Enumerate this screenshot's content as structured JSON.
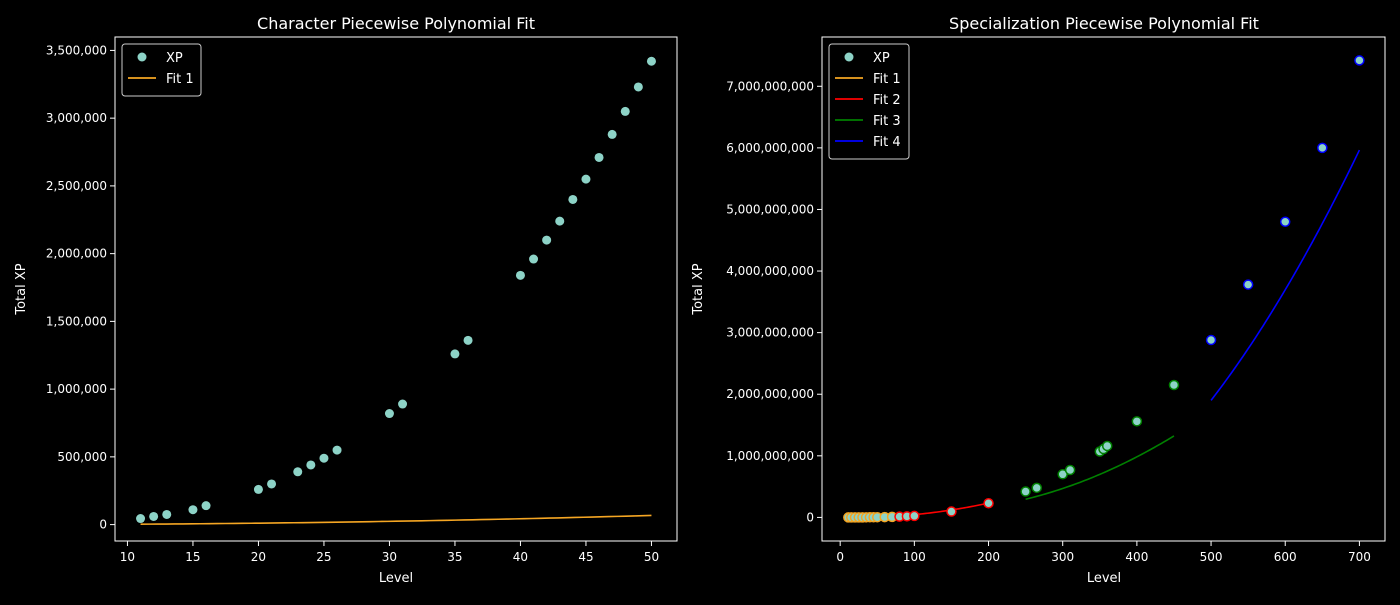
{
  "chart_data": [
    {
      "type": "line",
      "title": "Character Piecewise Polynomial Fit",
      "xlabel": "Level",
      "ylabel": "Total XP",
      "xlim": [
        9.05,
        51.95
      ],
      "ylim": [
        -121000,
        3599000
      ],
      "xticks": [
        10,
        15,
        20,
        25,
        30,
        35,
        40,
        45,
        50
      ],
      "yticks": [
        0,
        500000,
        1000000,
        1500000,
        2000000,
        2500000,
        3000000,
        3500000
      ],
      "legend": "top-left",
      "scatter": {
        "name": "XP",
        "color": "#8dd3c7",
        "x": [
          11,
          12,
          13,
          15,
          16,
          20,
          21,
          23,
          24,
          25,
          26,
          30,
          31,
          35,
          36,
          40,
          41,
          42,
          43,
          44,
          45,
          46,
          47,
          48,
          49,
          50
        ],
        "y": [
          45000,
          60000,
          75000,
          110000,
          140000,
          260000,
          300000,
          390000,
          440000,
          490000,
          550000,
          820000,
          890000,
          1260000,
          1360000,
          1840000,
          1960000,
          2100000,
          2240000,
          2400000,
          2550000,
          2710000,
          2880000,
          3050000,
          3230000,
          3420000
        ]
      },
      "fits": [
        {
          "name": "Fit 1",
          "color": "#f5a623",
          "coef": [
            27.4,
            -17.9,
            0
          ],
          "from": 11,
          "to": 50
        }
      ]
    },
    {
      "type": "line",
      "title": "Specialization Piecewise Polynomial Fit",
      "xlabel": "Level",
      "ylabel": "Total XP",
      "xlim": [
        -24.5,
        734.5
      ],
      "ylim": [
        -383000000,
        7800000000
      ],
      "xticks": [
        0,
        100,
        200,
        300,
        400,
        500,
        600,
        700
      ],
      "yticks": [
        0,
        1000000000,
        2000000000,
        3000000000,
        4000000000,
        5000000000,
        6000000000,
        7000000000
      ],
      "legend": "top-left",
      "scatter": {
        "name": "XP",
        "color": "#8dd3c7",
        "edge_colors": [
          "#f5a623",
          "#ff0000",
          "#008000",
          "#0000ff"
        ],
        "x": [
          11,
          15,
          20,
          25,
          30,
          35,
          40,
          45,
          50,
          60,
          70,
          80,
          90,
          100,
          150,
          200,
          250,
          265,
          300,
          310,
          350,
          355,
          360,
          400,
          450,
          500,
          550,
          600,
          650,
          700
        ],
        "y": [
          45000,
          110000,
          260000,
          490000,
          820000,
          1260000,
          1840000,
          2550000,
          3420000,
          5500000,
          8500000,
          12500000,
          17500000,
          24000000,
          95000000,
          230000000,
          420000000,
          480000000,
          700000000,
          770000000,
          1070000000,
          1110000000,
          1160000000,
          1560000000,
          2150000000,
          2880000000,
          3780000000,
          4800000000,
          6000000000,
          7420000000
        ]
      },
      "fits": [
        {
          "name": "Fit 1",
          "color": "#f5a623",
          "coef": [
            27.4,
            -17.9,
            0
          ],
          "from": 11,
          "to": 50
        },
        {
          "name": "Fit 2",
          "color": "#ff0000",
          "coef": [
            7333,
            -322000,
            4000000
          ],
          "from": 50,
          "to": 200
        },
        {
          "name": "Fit 3",
          "color": "#008000",
          "coef": [
            11000,
            -2560000,
            247500000
          ],
          "from": 250,
          "to": 450
        },
        {
          "name": "Fit 4",
          "color": "#0000ff",
          "coef": [
            23600,
            -8000000,
            0
          ],
          "from": 500,
          "to": 700
        }
      ]
    }
  ]
}
